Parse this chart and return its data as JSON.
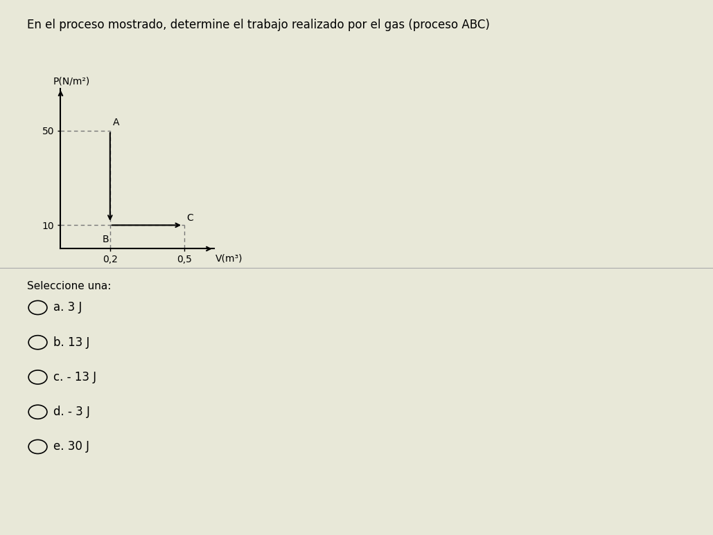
{
  "title": "En el proceso mostrado, determine el trabajo realizado por el gas (proceso ABC)",
  "xlabel": "V(m³)",
  "ylabel": "P(N/m²)",
  "points": {
    "A": [
      0.2,
      50
    ],
    "B": [
      0.2,
      10
    ],
    "C": [
      0.5,
      10
    ]
  },
  "yticks": [
    10,
    50
  ],
  "xticks": [
    0.2,
    0.5
  ],
  "xlim": [
    0,
    0.62
  ],
  "ylim": [
    0,
    68
  ],
  "background_color": "#e8e8d8",
  "plot_bg_color": "#e8e8d8",
  "options": [
    "a. 3 J",
    "b. 13 J",
    "c. - 13 J",
    "d. - 3 J",
    "e. 30 J"
  ],
  "select_text": "Seleccione una:",
  "arrow_color": "#000000",
  "dashed_color": "#777777",
  "line_color": "#000000",
  "title_fontsize": 12,
  "label_fontsize": 10,
  "tick_fontsize": 10,
  "option_fontsize": 12,
  "select_fontsize": 11
}
